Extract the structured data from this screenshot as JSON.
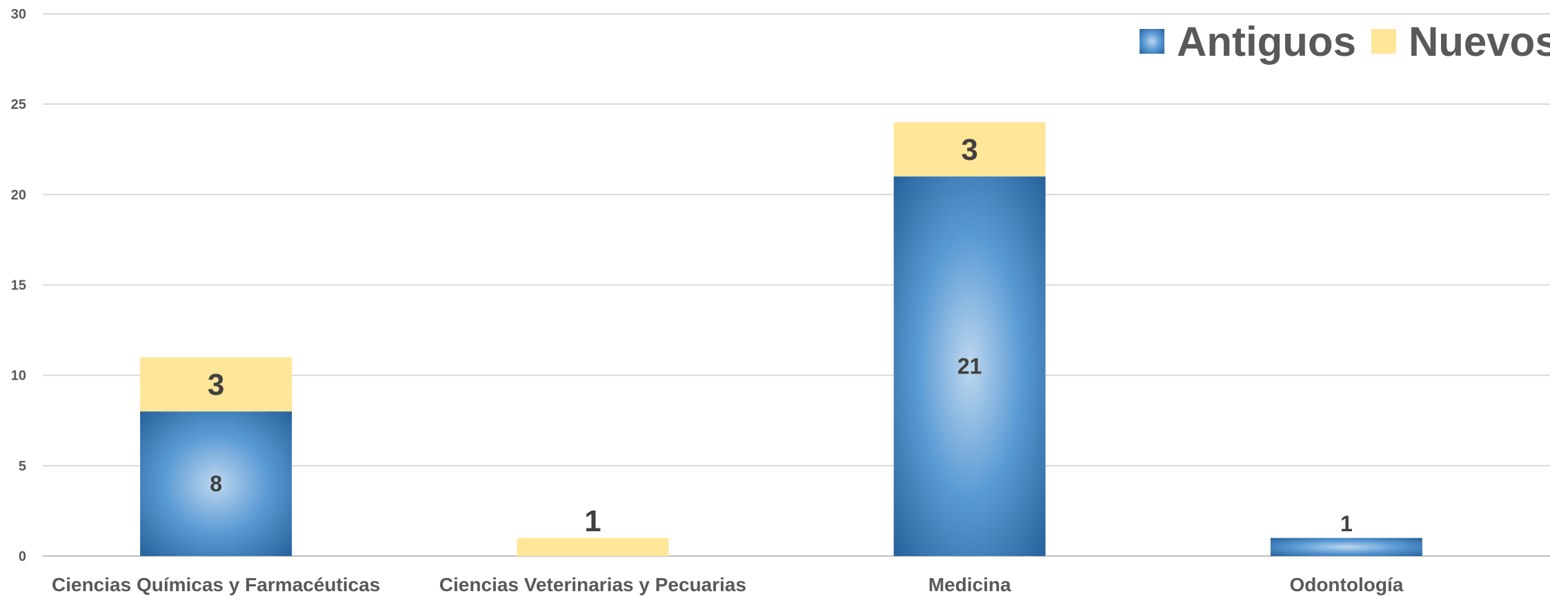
{
  "chart_data": {
    "type": "bar",
    "stacked": true,
    "categories": [
      "Ciencias Químicas y Farmacéuticas",
      "Ciencias Veterinarias y Pecuarias",
      "Medicina",
      "Odontología"
    ],
    "series": [
      {
        "name": "Antiguos",
        "values": [
          8,
          0,
          21,
          1
        ],
        "color": "#2E75B6",
        "labels": [
          "8",
          "",
          "21",
          "1"
        ]
      },
      {
        "name": "Nuevos",
        "values": [
          3,
          1,
          3,
          0
        ],
        "color": "#FFE699",
        "labels": [
          "3",
          "1",
          "3",
          ""
        ]
      }
    ],
    "ylim": [
      0,
      30
    ],
    "yticks": [
      "0",
      "5",
      "10",
      "15",
      "20",
      "25",
      "30"
    ],
    "grid": true,
    "legend": "top-right"
  }
}
